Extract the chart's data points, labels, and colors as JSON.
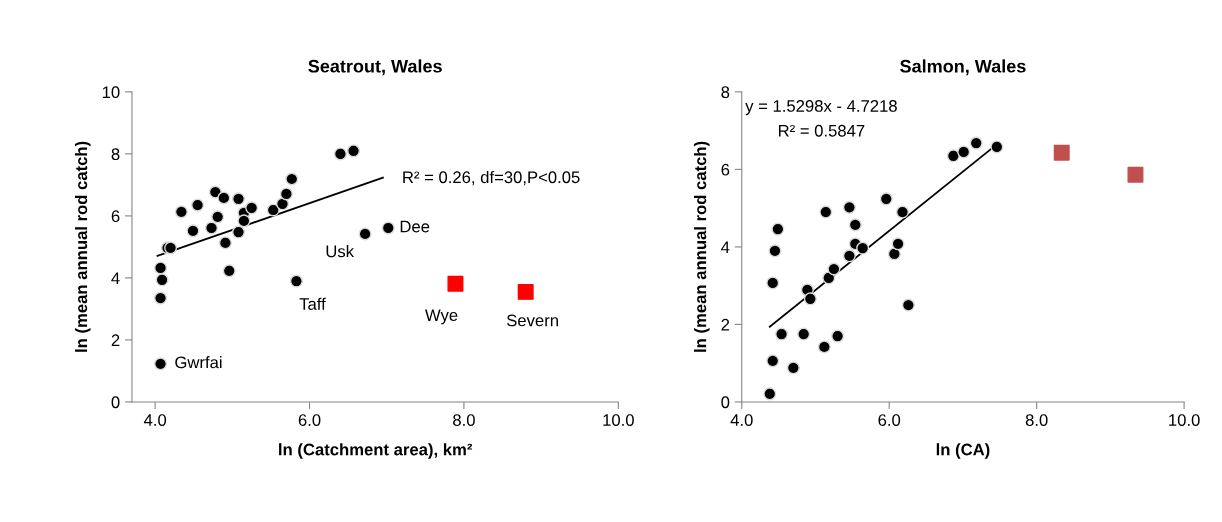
{
  "chart_data": [
    {
      "type": "scatter",
      "title": "Seatrout, Wales",
      "xlabel": "ln (Catchment area), km²",
      "ylabel": "ln (mean annual rod catch)",
      "xlim": [
        3.7,
        10.0
      ],
      "xticks": [
        {
          "value": 4,
          "label": "4.0"
        },
        {
          "value": 6,
          "label": "6.0"
        },
        {
          "value": 8,
          "label": "8.0"
        },
        {
          "value": 10,
          "label": "10.0"
        }
      ],
      "ylim": [
        0,
        10
      ],
      "yticks": [
        0,
        2,
        4,
        6,
        8,
        10
      ],
      "grid": false,
      "series": [
        {
          "marker": "circle",
          "color": "#000000",
          "x": [
            4.07,
            4.07,
            4.09,
            4.07,
            4.16,
            4.2,
            4.34,
            4.49,
            4.55,
            4.73,
            4.78,
            4.81,
            4.89,
            4.91,
            4.96,
            5.08,
            5.08,
            5.15,
            5.15,
            5.25,
            5.53,
            5.65,
            5.7,
            5.77,
            5.83,
            6.4,
            6.57,
            6.72,
            7.02
          ],
          "values": [
            1.23,
            3.35,
            3.94,
            4.32,
            4.97,
            4.97,
            6.13,
            5.52,
            6.35,
            5.61,
            6.77,
            5.97,
            6.58,
            5.13,
            4.23,
            5.48,
            6.55,
            6.1,
            5.84,
            6.26,
            6.19,
            6.39,
            6.71,
            7.19,
            3.9,
            8.0,
            8.1,
            5.42,
            5.61
          ]
        },
        {
          "marker": "square",
          "color": "#ff0000",
          "x": [
            7.89,
            8.8
          ],
          "values": [
            3.81,
            3.55
          ]
        },
        {
          "type": "line",
          "color": "#000000",
          "x": [
            4.03,
            6.95
          ],
          "values": [
            4.71,
            7.23
          ]
        }
      ],
      "annotations": [
        {
          "text": "Gwrfai",
          "x": 4.07,
          "y": 1.23
        },
        {
          "text": "Usk",
          "x": 6.72,
          "y": 5.42
        },
        {
          "text": "Dee",
          "x": 7.02,
          "y": 5.61
        },
        {
          "text": "Taff",
          "x": 5.83,
          "y": 3.9
        },
        {
          "text": "Wye",
          "x": 7.89,
          "y": 3.81
        },
        {
          "text": "Severn",
          "x": 8.8,
          "y": 3.55
        },
        "R² = 0.26, df=30,P<0.05"
      ]
    },
    {
      "type": "scatter",
      "title": "Salmon, Wales",
      "xlabel": "ln (CA)",
      "ylabel": "ln (mean annual rod catch)",
      "xlim": [
        4.0,
        10.0
      ],
      "xticks": [
        {
          "value": 4,
          "label": "4.0"
        },
        {
          "value": 6,
          "label": "6.0"
        },
        {
          "value": 8,
          "label": "8.0"
        },
        {
          "value": 10,
          "label": "10.0"
        }
      ],
      "ylim": [
        0,
        8
      ],
      "yticks": [
        0,
        2,
        4,
        6,
        8
      ],
      "grid": false,
      "series": [
        {
          "marker": "circle",
          "color": "#000000",
          "x": [
            4.38,
            4.42,
            4.7,
            4.54,
            4.84,
            5.12,
            5.3,
            4.42,
            4.45,
            4.49,
            4.89,
            4.93,
            5.18,
            5.25,
            5.14,
            5.46,
            5.46,
            5.54,
            5.54,
            5.64,
            5.96,
            6.07,
            6.12,
            6.18,
            6.26,
            6.87,
            7.01,
            7.18,
            7.46
          ],
          "values": [
            0.21,
            1.06,
            0.88,
            1.75,
            1.75,
            1.42,
            1.7,
            3.07,
            3.9,
            4.46,
            2.89,
            2.66,
            3.2,
            3.43,
            4.9,
            3.77,
            5.02,
            4.57,
            4.08,
            3.97,
            5.24,
            3.82,
            4.08,
            4.9,
            2.5,
            6.35,
            6.45,
            6.68,
            6.58
          ]
        },
        {
          "marker": "square",
          "color": "#c0504d",
          "x": [
            8.34,
            9.34
          ],
          "values": [
            6.43,
            5.86
          ]
        },
        {
          "type": "line",
          "color": "#000000",
          "x": [
            4.38,
            7.45
          ],
          "values": [
            1.94,
            6.63
          ]
        }
      ],
      "annotations": [
        "y = 1.5298x - 4.7218",
        "R² = 0.5847"
      ]
    }
  ]
}
